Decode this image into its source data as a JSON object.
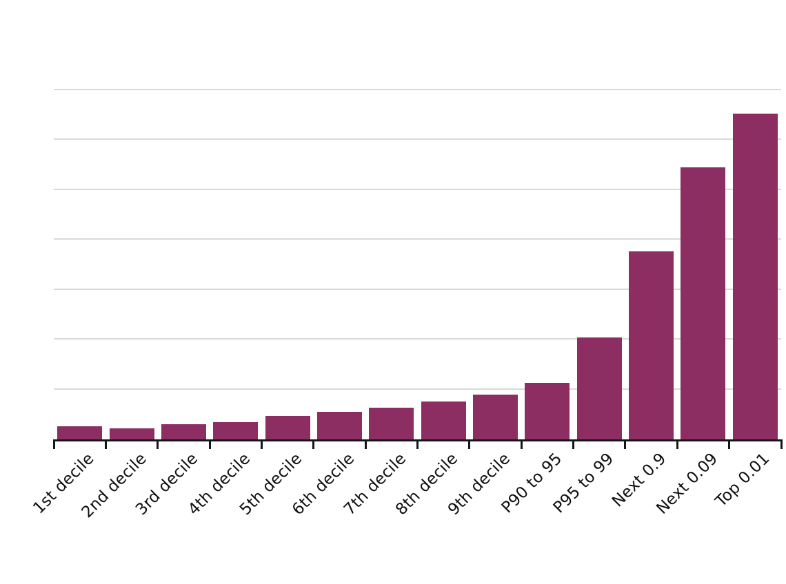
{
  "page": {
    "background_color": "#ffffff"
  },
  "chart_data": {
    "type": "bar",
    "categories": [
      "1st decile",
      "2nd decile",
      "3rd decile",
      "4th decile",
      "5th decile",
      "6th decile",
      "7th decile",
      "8th decile",
      "9th decile",
      "P90 to 95",
      "P95 to 99",
      "Next 0.9",
      "Next 0.09",
      "Top 0.01"
    ],
    "values": [
      0.26,
      0.22,
      0.3,
      0.35,
      0.47,
      0.55,
      0.63,
      0.76,
      0.9,
      1.13,
      2.04,
      3.77,
      5.45,
      6.52
    ],
    "value_scale_note": "y-axis has no tick labels; values estimated in gridline units (1 unit = one gridline interval)",
    "ylim": [
      0,
      7
    ],
    "xlabel": "",
    "ylabel": "",
    "y_tick_labels": [],
    "legend": "none",
    "grid": "horizontal gridlines on, unlabeled",
    "gridline_step": 1,
    "gridline_color": "#d9d9d9",
    "bar_color": "#8c2e62",
    "axis_color": "#161616",
    "label_color": "#101010",
    "x_label_rotation_deg": -45
  }
}
